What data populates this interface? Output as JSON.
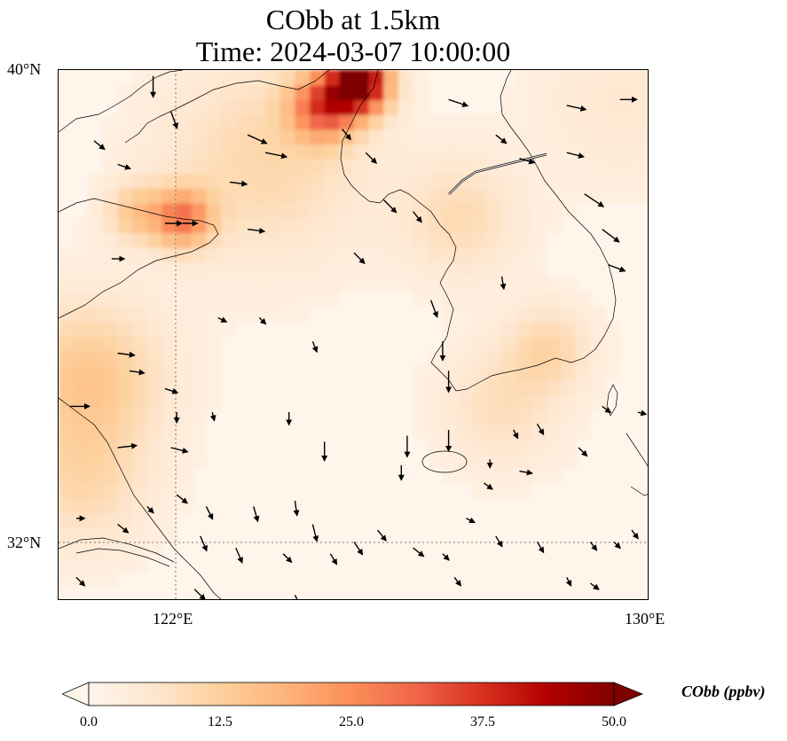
{
  "title": {
    "line1": "CObb at 1.5km",
    "line2": "Time: 2024-03-07 10:00:00"
  },
  "axes": {
    "lat_ticks": [
      {
        "label": "40°N",
        "value": 40
      },
      {
        "label": "32°N",
        "value": 32
      }
    ],
    "lon_ticks": [
      {
        "label": "122°E",
        "value": 122
      },
      {
        "label": "130°E",
        "value": 130
      }
    ]
  },
  "colorbar": {
    "title": "CObb (ppbv)",
    "min": 0.0,
    "max": 50.0,
    "tick_labels": [
      "0.0",
      "12.5",
      "25.0",
      "37.5",
      "50.0"
    ],
    "colormap": "OrRd",
    "extend": "both"
  },
  "chart_data": {
    "type": "heatmap",
    "variable": "CObb",
    "units": "ppbv",
    "projection": "PlateCarree",
    "lon_range": [
      120,
      130
    ],
    "lat_range": [
      31,
      40
    ],
    "gridlines": "dotted at 122°E and 32°N",
    "concentration_hotspots": [
      {
        "lon": 125.1,
        "lat": 39.8,
        "value": 50,
        "spread": 0.35
      },
      {
        "lon": 124.5,
        "lat": 39.4,
        "value": 30,
        "spread": 0.4
      },
      {
        "lon": 122.1,
        "lat": 37.5,
        "value": 25,
        "spread": 0.35
      },
      {
        "lon": 121.3,
        "lat": 37.6,
        "value": 12,
        "spread": 0.35
      },
      {
        "lon": 123.5,
        "lat": 38.5,
        "value": 9,
        "spread": 1.2
      },
      {
        "lon": 120.5,
        "lat": 34.8,
        "value": 13,
        "spread": 0.9
      },
      {
        "lon": 120.4,
        "lat": 33.0,
        "value": 8,
        "spread": 0.8
      },
      {
        "lon": 126.8,
        "lat": 37.5,
        "value": 8,
        "spread": 0.7
      },
      {
        "lon": 128.3,
        "lat": 35.3,
        "value": 9,
        "spread": 0.5
      },
      {
        "lon": 127.5,
        "lat": 34.3,
        "value": 7,
        "spread": 0.7
      },
      {
        "lon": 129.5,
        "lat": 39.5,
        "value": 4,
        "spread": 1.0
      }
    ],
    "wind_vectors": [
      {
        "lon": 121.6,
        "lat": 39.9,
        "u": 0.0,
        "v": -1.0
      },
      {
        "lon": 121.9,
        "lat": 39.3,
        "u": 0.3,
        "v": -0.8
      },
      {
        "lon": 120.6,
        "lat": 38.8,
        "u": 0.5,
        "v": -0.4
      },
      {
        "lon": 121.0,
        "lat": 38.4,
        "u": 0.6,
        "v": -0.2
      },
      {
        "lon": 123.2,
        "lat": 38.9,
        "u": 0.9,
        "v": -0.4
      },
      {
        "lon": 123.5,
        "lat": 38.6,
        "u": 1.0,
        "v": -0.2
      },
      {
        "lon": 122.9,
        "lat": 38.1,
        "u": 0.8,
        "v": -0.1
      },
      {
        "lon": 121.8,
        "lat": 37.4,
        "u": 0.8,
        "v": 0.0
      },
      {
        "lon": 122.1,
        "lat": 37.4,
        "u": 0.7,
        "v": 0.0
      },
      {
        "lon": 123.2,
        "lat": 37.3,
        "u": 0.8,
        "v": -0.1
      },
      {
        "lon": 120.9,
        "lat": 36.8,
        "u": 0.6,
        "v": 0.0
      },
      {
        "lon": 124.8,
        "lat": 39.0,
        "u": 0.4,
        "v": -0.5
      },
      {
        "lon": 125.2,
        "lat": 38.6,
        "u": 0.5,
        "v": -0.5
      },
      {
        "lon": 125.5,
        "lat": 37.8,
        "u": 0.6,
        "v": -0.6
      },
      {
        "lon": 126.0,
        "lat": 37.6,
        "u": 0.4,
        "v": -0.5
      },
      {
        "lon": 126.6,
        "lat": 39.5,
        "u": 0.9,
        "v": -0.3
      },
      {
        "lon": 127.4,
        "lat": 38.9,
        "u": 0.5,
        "v": -0.4
      },
      {
        "lon": 127.8,
        "lat": 38.5,
        "u": 0.7,
        "v": -0.2
      },
      {
        "lon": 128.6,
        "lat": 39.4,
        "u": 0.9,
        "v": -0.2
      },
      {
        "lon": 129.5,
        "lat": 39.5,
        "u": 0.8,
        "v": 0.0
      },
      {
        "lon": 128.6,
        "lat": 38.6,
        "u": 0.8,
        "v": -0.2
      },
      {
        "lon": 128.9,
        "lat": 37.9,
        "u": 0.9,
        "v": -0.6
      },
      {
        "lon": 129.2,
        "lat": 37.3,
        "u": 0.8,
        "v": -0.6
      },
      {
        "lon": 129.3,
        "lat": 36.7,
        "u": 0.8,
        "v": -0.3
      },
      {
        "lon": 125.0,
        "lat": 36.9,
        "u": 0.5,
        "v": -0.5
      },
      {
        "lon": 126.3,
        "lat": 36.1,
        "u": 0.3,
        "v": -0.8
      },
      {
        "lon": 127.5,
        "lat": 36.5,
        "u": 0.1,
        "v": -0.6
      },
      {
        "lon": 126.5,
        "lat": 35.4,
        "u": 0.0,
        "v": -0.9
      },
      {
        "lon": 126.6,
        "lat": 34.9,
        "u": 0.0,
        "v": -1.0
      },
      {
        "lon": 122.7,
        "lat": 35.8,
        "u": 0.4,
        "v": -0.2
      },
      {
        "lon": 123.4,
        "lat": 35.8,
        "u": 0.3,
        "v": -0.3
      },
      {
        "lon": 124.3,
        "lat": 35.4,
        "u": 0.2,
        "v": -0.5
      },
      {
        "lon": 121.0,
        "lat": 35.2,
        "u": 0.8,
        "v": -0.1
      },
      {
        "lon": 121.2,
        "lat": 34.9,
        "u": 0.7,
        "v": -0.1
      },
      {
        "lon": 121.8,
        "lat": 34.6,
        "u": 0.6,
        "v": -0.2
      },
      {
        "lon": 122.0,
        "lat": 34.2,
        "u": 0.0,
        "v": -0.5
      },
      {
        "lon": 122.6,
        "lat": 34.2,
        "u": 0.1,
        "v": -0.4
      },
      {
        "lon": 123.9,
        "lat": 34.2,
        "u": 0.0,
        "v": -0.6
      },
      {
        "lon": 120.2,
        "lat": 34.3,
        "u": 0.9,
        "v": 0.0
      },
      {
        "lon": 121.0,
        "lat": 33.6,
        "u": 0.9,
        "v": 0.1
      },
      {
        "lon": 121.9,
        "lat": 33.6,
        "u": 0.8,
        "v": -0.2
      },
      {
        "lon": 124.5,
        "lat": 33.7,
        "u": 0.0,
        "v": -0.9
      },
      {
        "lon": 125.9,
        "lat": 33.8,
        "u": 0.0,
        "v": -1.0
      },
      {
        "lon": 125.8,
        "lat": 33.3,
        "u": 0.0,
        "v": -0.7
      },
      {
        "lon": 126.6,
        "lat": 33.9,
        "u": 0.0,
        "v": -1.0
      },
      {
        "lon": 127.3,
        "lat": 33.4,
        "u": 0.0,
        "v": -0.4
      },
      {
        "lon": 127.7,
        "lat": 33.9,
        "u": 0.2,
        "v": -0.4
      },
      {
        "lon": 128.1,
        "lat": 34.0,
        "u": 0.3,
        "v": -0.5
      },
      {
        "lon": 128.8,
        "lat": 33.6,
        "u": 0.4,
        "v": -0.4
      },
      {
        "lon": 129.2,
        "lat": 34.3,
        "u": 0.4,
        "v": -0.3
      },
      {
        "lon": 129.8,
        "lat": 34.2,
        "u": 0.4,
        "v": -0.1
      },
      {
        "lon": 127.2,
        "lat": 33.0,
        "u": 0.4,
        "v": -0.3
      },
      {
        "lon": 127.8,
        "lat": 33.2,
        "u": 0.6,
        "v": -0.1
      },
      {
        "lon": 122.0,
        "lat": 32.8,
        "u": 0.5,
        "v": -0.4
      },
      {
        "lon": 122.5,
        "lat": 32.6,
        "u": 0.3,
        "v": -0.6
      },
      {
        "lon": 123.3,
        "lat": 32.6,
        "u": 0.2,
        "v": -0.7
      },
      {
        "lon": 124.0,
        "lat": 32.7,
        "u": 0.1,
        "v": -0.7
      },
      {
        "lon": 124.3,
        "lat": 32.3,
        "u": 0.2,
        "v": -0.8
      },
      {
        "lon": 120.3,
        "lat": 32.4,
        "u": 0.4,
        "v": 0.0
      },
      {
        "lon": 121.0,
        "lat": 32.3,
        "u": 0.5,
        "v": -0.4
      },
      {
        "lon": 121.5,
        "lat": 32.6,
        "u": 0.3,
        "v": -0.3
      },
      {
        "lon": 122.4,
        "lat": 32.1,
        "u": 0.3,
        "v": -0.7
      },
      {
        "lon": 123.0,
        "lat": 31.9,
        "u": 0.3,
        "v": -0.7
      },
      {
        "lon": 123.8,
        "lat": 31.8,
        "u": 0.4,
        "v": -0.4
      },
      {
        "lon": 124.6,
        "lat": 31.8,
        "u": 0.3,
        "v": -0.5
      },
      {
        "lon": 125.0,
        "lat": 32.0,
        "u": 0.4,
        "v": -0.6
      },
      {
        "lon": 125.4,
        "lat": 32.2,
        "u": 0.4,
        "v": -0.5
      },
      {
        "lon": 126.0,
        "lat": 31.9,
        "u": 0.5,
        "v": -0.4
      },
      {
        "lon": 126.5,
        "lat": 31.8,
        "u": 0.3,
        "v": -0.3
      },
      {
        "lon": 126.9,
        "lat": 32.4,
        "u": 0.4,
        "v": -0.2
      },
      {
        "lon": 127.4,
        "lat": 32.1,
        "u": 0.3,
        "v": -0.5
      },
      {
        "lon": 128.1,
        "lat": 32.0,
        "u": 0.3,
        "v": -0.5
      },
      {
        "lon": 128.6,
        "lat": 31.4,
        "u": 0.2,
        "v": -0.4
      },
      {
        "lon": 129.0,
        "lat": 32.0,
        "u": 0.3,
        "v": -0.4
      },
      {
        "lon": 129.4,
        "lat": 32.0,
        "u": 0.3,
        "v": -0.3
      },
      {
        "lon": 129.7,
        "lat": 32.2,
        "u": 0.3,
        "v": -0.4
      },
      {
        "lon": 120.3,
        "lat": 31.4,
        "u": 0.4,
        "v": -0.4
      },
      {
        "lon": 122.3,
        "lat": 31.2,
        "u": 0.5,
        "v": -0.5
      },
      {
        "lon": 124.0,
        "lat": 31.1,
        "u": 0.3,
        "v": -0.6
      },
      {
        "lon": 126.7,
        "lat": 31.4,
        "u": 0.3,
        "v": -0.4
      },
      {
        "lon": 129.0,
        "lat": 31.3,
        "u": 0.4,
        "v": -0.3
      }
    ]
  }
}
